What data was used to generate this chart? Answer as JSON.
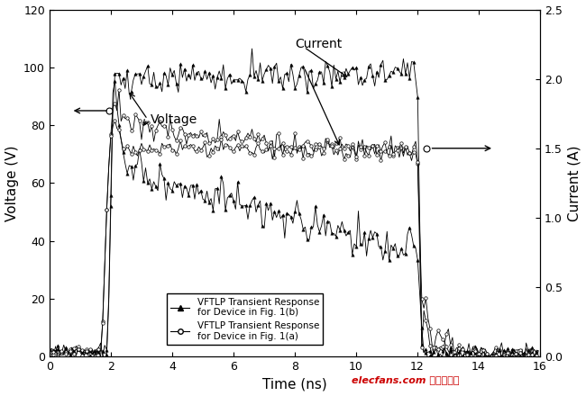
{
  "title": "",
  "xlabel": "Time (ns)",
  "ylabel_left": "Voltage (V)",
  "ylabel_right": "Current (A)",
  "xlim": [
    0,
    16
  ],
  "ylim_left": [
    0,
    120
  ],
  "ylim_right": [
    0,
    2.5
  ],
  "xticks": [
    0,
    2,
    4,
    6,
    8,
    10,
    12,
    14,
    16
  ],
  "yticks_left": [
    0,
    20,
    40,
    60,
    80,
    100,
    120
  ],
  "yticks_right": [
    0.0,
    0.5,
    1.0,
    1.5,
    2.0,
    2.5
  ],
  "legend": [
    "VFTLP Transient Response\nfor Device in Fig. 1(b)",
    "VFTLP Transient Response\nfor Device in Fig. 1(a)"
  ],
  "voltage_label": "Voltage",
  "current_label": "Current",
  "background_color": "#ffffff",
  "line_color": "#000000",
  "watermark_text": "elecfans.com 电子发烧友",
  "watermark_color": "#cc0000"
}
